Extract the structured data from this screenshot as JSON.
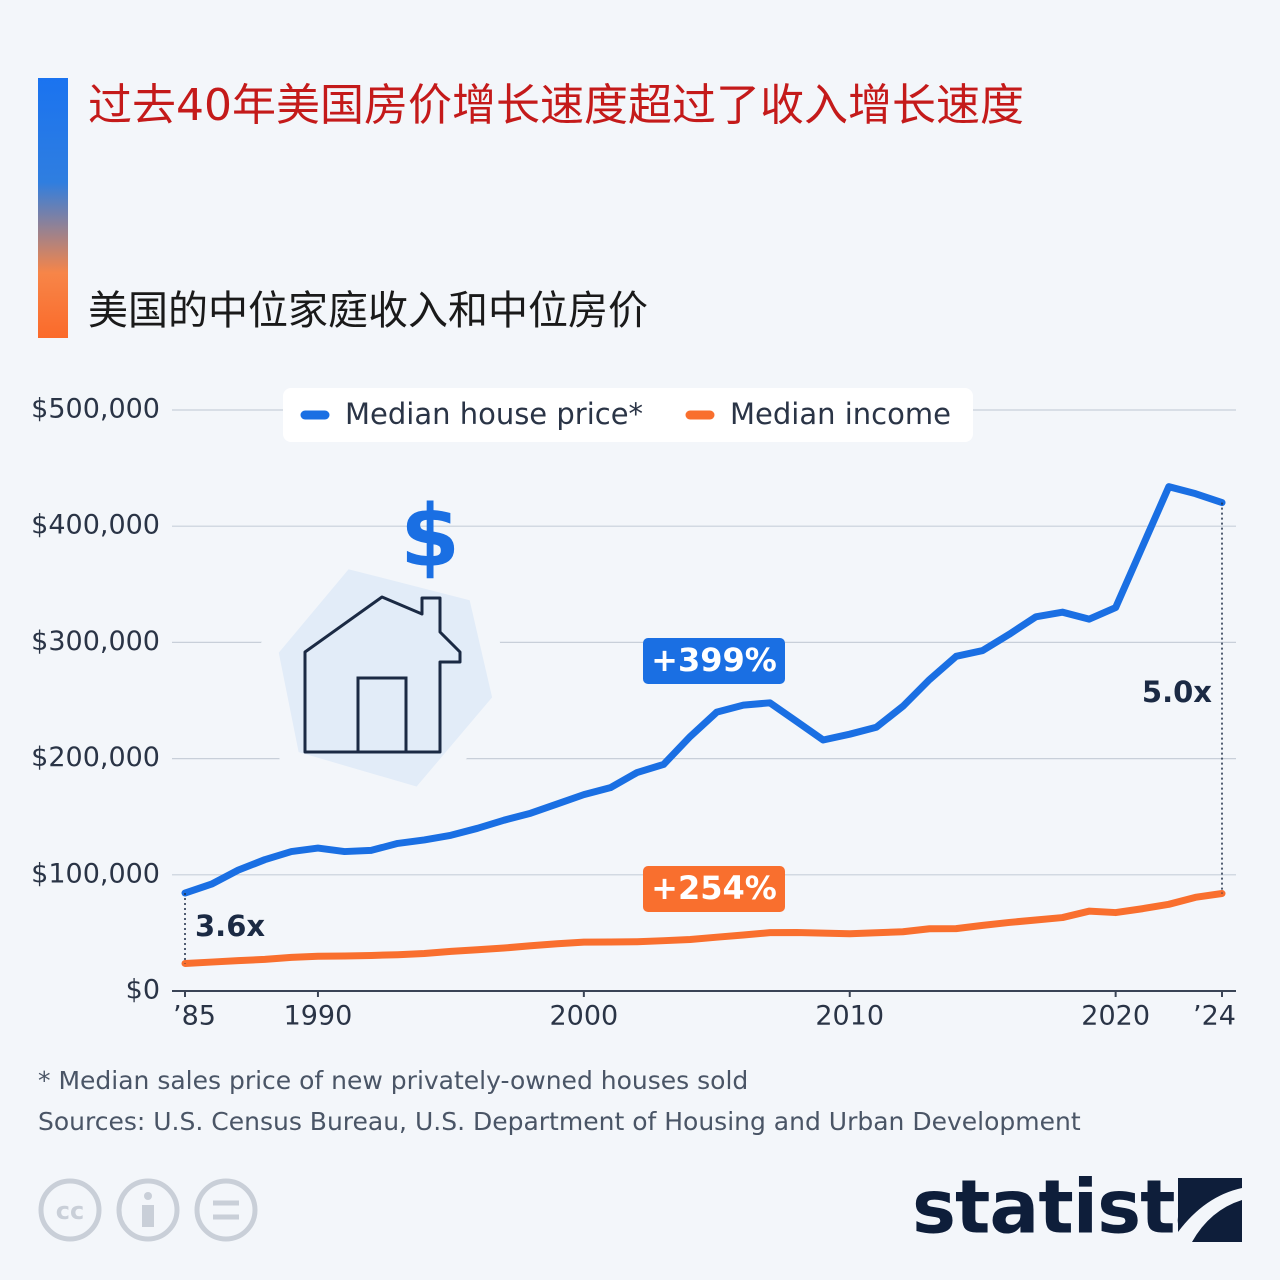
{
  "chart_data": {
    "type": "line",
    "title": "过去40年美国房价增长速度超过了收入增长速度",
    "subtitle": "美国的中位家庭收入和中位房价",
    "x": [
      1985,
      1986,
      1987,
      1988,
      1989,
      1990,
      1991,
      1992,
      1993,
      1994,
      1995,
      1996,
      1997,
      1998,
      1999,
      2000,
      2001,
      2002,
      2003,
      2004,
      2005,
      2006,
      2007,
      2008,
      2009,
      2010,
      2011,
      2012,
      2013,
      2014,
      2015,
      2016,
      2017,
      2018,
      2019,
      2020,
      2021,
      2022,
      2023,
      2024
    ],
    "series": [
      {
        "name": "Median house price*",
        "color": "#1a6fe3",
        "values": [
          84300,
          92000,
          104000,
          113000,
          120000,
          123000,
          120000,
          121000,
          127000,
          130000,
          134000,
          140000,
          147000,
          153000,
          161000,
          169000,
          175000,
          188000,
          195000,
          219000,
          240000,
          246000,
          248000,
          232000,
          216000,
          221000,
          227000,
          245000,
          268000,
          288000,
          293000,
          307000,
          322000,
          326000,
          320000,
          330000,
          382000,
          434000,
          428000,
          420300
        ]
      },
      {
        "name": "Median income",
        "color": "#f96f2e",
        "values": [
          23700,
          24900,
          26100,
          27200,
          28900,
          29900,
          30100,
          30600,
          31200,
          32300,
          34100,
          35500,
          37000,
          38900,
          40700,
          42100,
          42200,
          42400,
          43300,
          44300,
          46300,
          48200,
          50200,
          50300,
          49800,
          49300,
          50100,
          51000,
          53600,
          53700,
          56500,
          59000,
          61100,
          63200,
          68700,
          67500,
          70800,
          74600,
          80600,
          83900
        ]
      }
    ],
    "xlim": [
      1985,
      2024
    ],
    "xticks": [
      {
        "value": 1985,
        "label": "’85"
      },
      1990,
      2000,
      2010,
      2020,
      {
        "value": 2024,
        "label": "’24"
      }
    ],
    "ylim": [
      0,
      500000
    ],
    "yticks": [
      {
        "value": 0,
        "label": "$0"
      },
      {
        "value": 100000,
        "label": "$100,000"
      },
      {
        "value": 200000,
        "label": "$200,000"
      },
      {
        "value": 300000,
        "label": "$300,000"
      },
      {
        "value": 400000,
        "label": "$400,000"
      },
      {
        "value": 500000,
        "label": "$500,000"
      }
    ],
    "grid": true,
    "annotations": [
      "+399%",
      "+254%",
      "3.6x",
      "5.0x"
    ],
    "footnote": "* Median sales price of new privately-owned houses sold",
    "source": "Sources: U.S. Census Bureau, U.S. Department of Housing and Urban Development",
    "brand": "statista"
  }
}
